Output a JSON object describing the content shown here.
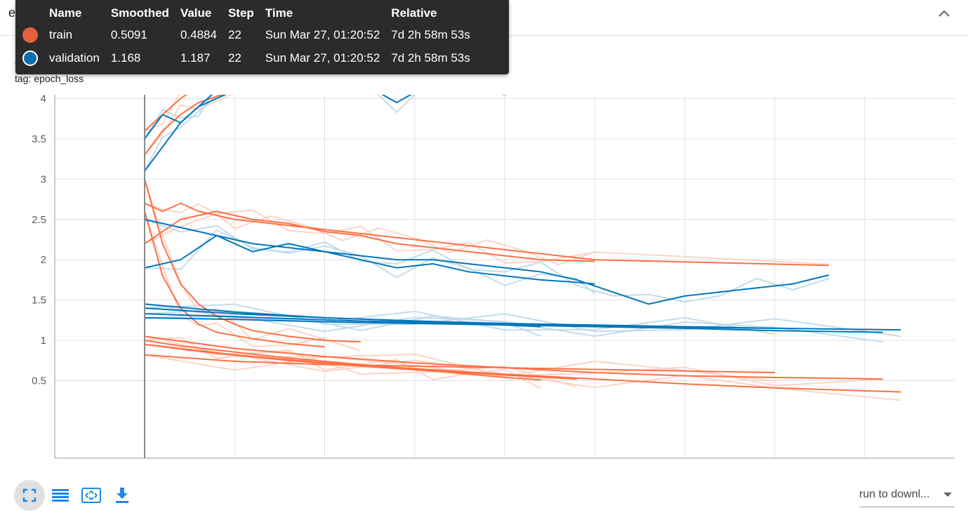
{
  "card": {
    "title": "epoch_loss",
    "collapse_icon": "chevron-up-icon"
  },
  "run_title": "epoch_loss",
  "tag_line": "tag: epoch_loss",
  "tooltip": {
    "headers": [
      "Name",
      "Smoothed",
      "Value",
      "Step",
      "Time",
      "Relative"
    ],
    "rows": [
      {
        "name": "train",
        "smoothed": "0.5091",
        "value": "0.4884",
        "step": "22",
        "time": "Sun Mar 27, 01:20:52",
        "relative": "7d 2h 58m 53s",
        "color": "#e8603c"
      },
      {
        "name": "validation",
        "smoothed": "1.168",
        "value": "1.187",
        "step": "22",
        "time": "Sun Mar 27, 01:20:52",
        "relative": "7d 2h 58m 53s",
        "color": "#0b6fb0"
      }
    ]
  },
  "toolbar": {
    "icons": [
      "fit-domain-icon",
      "data-table-icon",
      "expand-icon",
      "download-icon"
    ]
  },
  "run_select": {
    "label": "run to downl..."
  },
  "colors": {
    "train": "#ff7043",
    "train_faint": "#fbd0c2",
    "validation": "#0077bb",
    "validation_faint": "#bcd8ea",
    "toolbar_icon": "#1e88e5"
  },
  "chart_data": {
    "type": "line",
    "title": "",
    "xlabel": "",
    "ylabel": "",
    "xlim": [
      -5,
      45
    ],
    "ylim": [
      0.2,
      4.5
    ],
    "xticks": [
      0,
      5,
      10,
      15,
      20,
      25,
      30,
      35,
      40
    ],
    "yticks": [
      0.5,
      1,
      1.5,
      2,
      2.5,
      3,
      3.5,
      4
    ],
    "grid": true,
    "legend": "tooltip top-left",
    "series": [
      {
        "name": "train",
        "role": "train",
        "x": [
          0,
          2,
          4,
          6,
          8,
          10,
          12,
          14,
          16,
          18,
          20,
          22
        ],
        "y": [
          1.0,
          0.93,
          0.88,
          0.83,
          0.78,
          0.74,
          0.7,
          0.66,
          0.62,
          0.58,
          0.54,
          0.51
        ]
      },
      {
        "name": "train",
        "role": "train",
        "x": [
          0,
          5,
          10,
          15,
          20,
          25,
          30,
          35,
          42
        ],
        "y": [
          0.95,
          0.82,
          0.72,
          0.65,
          0.58,
          0.52,
          0.46,
          0.41,
          0.36
        ]
      },
      {
        "name": "train",
        "role": "train",
        "x": [
          0,
          5,
          10,
          15,
          20,
          25,
          30,
          35,
          41
        ],
        "y": [
          1.05,
          0.9,
          0.8,
          0.72,
          0.66,
          0.6,
          0.56,
          0.54,
          0.52
        ]
      },
      {
        "name": "train",
        "role": "train",
        "x": [
          0,
          5,
          10,
          15,
          20,
          25,
          30,
          35
        ],
        "y": [
          0.82,
          0.74,
          0.7,
          0.68,
          0.66,
          0.64,
          0.62,
          0.6
        ]
      },
      {
        "name": "train",
        "role": "train",
        "x": [
          0,
          4,
          8,
          12,
          16,
          20,
          24
        ],
        "y": [
          0.95,
          0.84,
          0.75,
          0.68,
          0.62,
          0.57,
          0.52
        ]
      },
      {
        "name": "train",
        "role": "train",
        "x": [
          0,
          1,
          2,
          3,
          4,
          5,
          6,
          8,
          10,
          12
        ],
        "y": [
          3.0,
          2.2,
          1.7,
          1.45,
          1.3,
          1.2,
          1.12,
          1.05,
          1.0,
          0.98
        ]
      },
      {
        "name": "train",
        "role": "train",
        "x": [
          0,
          1,
          2,
          3,
          4,
          6,
          8,
          10
        ],
        "y": [
          2.6,
          1.8,
          1.4,
          1.2,
          1.1,
          1.02,
          0.96,
          0.92
        ]
      },
      {
        "name": "train",
        "role": "train",
        "x": [
          0,
          1,
          2,
          3,
          4,
          5,
          7,
          9,
          11,
          13,
          15,
          17,
          19,
          21,
          23,
          25,
          38
        ],
        "y": [
          2.7,
          2.6,
          2.7,
          2.6,
          2.55,
          2.5,
          2.45,
          2.4,
          2.35,
          2.3,
          2.25,
          2.2,
          2.15,
          2.1,
          2.05,
          2.0,
          1.93
        ]
      },
      {
        "name": "train",
        "role": "train",
        "x": [
          0,
          2,
          4,
          6,
          8,
          10,
          12,
          14,
          16,
          18,
          20,
          22,
          25
        ],
        "y": [
          2.2,
          2.5,
          2.6,
          2.5,
          2.45,
          2.35,
          2.3,
          2.2,
          2.15,
          2.1,
          2.05,
          2.0,
          1.98
        ]
      },
      {
        "name": "train",
        "role": "train",
        "x": [
          0,
          1,
          2,
          3,
          4,
          6,
          8,
          10,
          12,
          23
        ],
        "y": [
          3.6,
          3.8,
          4.0,
          4.15,
          4.25,
          4.35,
          4.4,
          4.45,
          4.5,
          4.5
        ]
      },
      {
        "name": "train",
        "role": "train",
        "x": [
          0,
          1,
          2,
          3,
          5,
          7,
          9,
          11,
          22
        ],
        "y": [
          3.3,
          3.6,
          3.8,
          3.95,
          4.1,
          4.2,
          4.3,
          4.4,
          4.3
        ]
      },
      {
        "name": "validation",
        "role": "validation",
        "x": [
          0,
          4,
          8,
          12,
          16,
          20,
          22
        ],
        "y": [
          1.33,
          1.3,
          1.27,
          1.24,
          1.22,
          1.19,
          1.17
        ]
      },
      {
        "name": "validation",
        "role": "validation",
        "x": [
          0,
          5,
          10,
          15,
          20,
          25,
          30,
          35,
          42
        ],
        "y": [
          1.4,
          1.33,
          1.28,
          1.24,
          1.21,
          1.19,
          1.17,
          1.15,
          1.13
        ]
      },
      {
        "name": "validation",
        "role": "validation",
        "x": [
          0,
          5,
          10,
          15,
          20,
          25,
          30,
          35,
          41
        ],
        "y": [
          1.28,
          1.26,
          1.23,
          1.21,
          1.19,
          1.17,
          1.15,
          1.12,
          1.1
        ]
      },
      {
        "name": "validation",
        "role": "validation",
        "x": [
          0,
          5,
          10,
          15,
          20,
          25,
          30,
          35
        ],
        "y": [
          1.45,
          1.35,
          1.28,
          1.24,
          1.2,
          1.18,
          1.16,
          1.15
        ]
      },
      {
        "name": "validation",
        "role": "validation",
        "x": [
          0,
          2,
          4,
          6,
          8,
          10,
          12,
          14,
          16,
          18,
          20,
          22,
          24,
          25
        ],
        "y": [
          1.9,
          2.0,
          2.3,
          2.1,
          2.2,
          2.1,
          2.0,
          1.9,
          1.95,
          1.85,
          1.8,
          1.75,
          1.72,
          1.7
        ]
      },
      {
        "name": "validation",
        "role": "validation",
        "x": [
          0,
          2,
          4,
          6,
          8,
          10,
          12,
          14,
          16,
          18,
          20,
          22,
          24,
          26,
          28,
          30,
          32,
          34,
          36,
          38
        ],
        "y": [
          2.5,
          2.4,
          2.3,
          2.2,
          2.15,
          2.1,
          2.05,
          2.0,
          2.0,
          1.95,
          1.9,
          1.85,
          1.75,
          1.6,
          1.45,
          1.55,
          1.6,
          1.65,
          1.7,
          1.81
        ]
      },
      {
        "name": "validation",
        "role": "validation",
        "x": [
          0,
          1,
          2,
          3,
          4,
          6,
          8,
          10,
          12,
          14,
          16,
          18,
          20,
          22,
          23
        ],
        "y": [
          3.5,
          3.8,
          3.7,
          3.9,
          4.1,
          4.3,
          4.5,
          4.45,
          4.2,
          3.95,
          4.2,
          4.3,
          4.15,
          4.35,
          4.14
        ]
      },
      {
        "name": "validation",
        "role": "validation",
        "x": [
          0,
          1,
          2,
          3,
          5,
          7,
          9,
          23
        ],
        "y": [
          3.1,
          3.4,
          3.7,
          3.9,
          4.1,
          4.3,
          4.5,
          4.14
        ]
      }
    ]
  }
}
